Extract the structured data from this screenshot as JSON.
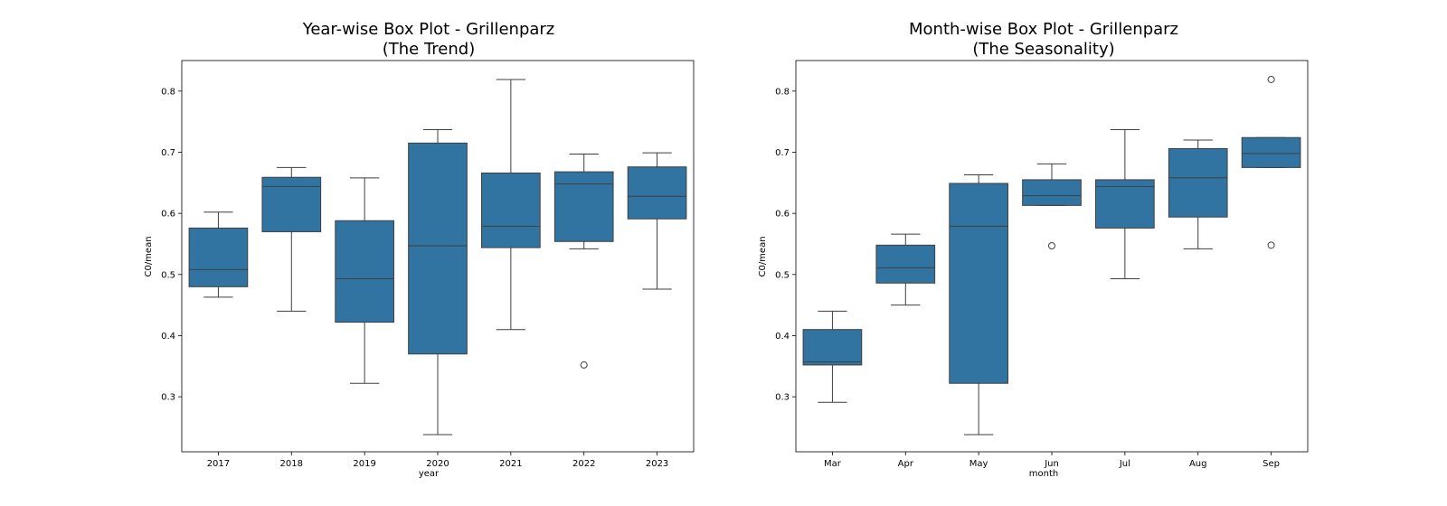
{
  "chart_data": [
    {
      "type": "box",
      "title": [
        "Year-wise Box Plot - Grillenparz",
        "(The Trend)"
      ],
      "xlabel": "year",
      "ylabel": "C0/mean",
      "ylim": [
        0.21,
        0.85
      ],
      "yticks": [
        "0.3",
        "0.4",
        "0.5",
        "0.6",
        "0.7",
        "0.8"
      ],
      "grid": false,
      "box_color": "#3274a1",
      "categories": [
        "2017",
        "2018",
        "2019",
        "2020",
        "2021",
        "2022",
        "2023"
      ],
      "boxes": [
        {
          "whisker_low": 0.463,
          "q1": 0.48,
          "median": 0.508,
          "q3": 0.576,
          "whisker_high": 0.602,
          "outliers": []
        },
        {
          "whisker_low": 0.44,
          "q1": 0.57,
          "median": 0.644,
          "q3": 0.659,
          "whisker_high": 0.675,
          "outliers": []
        },
        {
          "whisker_low": 0.322,
          "q1": 0.422,
          "median": 0.493,
          "q3": 0.588,
          "whisker_high": 0.658,
          "outliers": []
        },
        {
          "whisker_low": 0.238,
          "q1": 0.37,
          "median": 0.547,
          "q3": 0.715,
          "whisker_high": 0.737,
          "outliers": []
        },
        {
          "whisker_low": 0.41,
          "q1": 0.544,
          "median": 0.579,
          "q3": 0.666,
          "whisker_high": 0.819,
          "outliers": []
        },
        {
          "whisker_low": 0.542,
          "q1": 0.554,
          "median": 0.648,
          "q3": 0.668,
          "whisker_high": 0.697,
          "outliers": [
            0.352
          ]
        },
        {
          "whisker_low": 0.476,
          "q1": 0.591,
          "median": 0.628,
          "q3": 0.676,
          "whisker_high": 0.699,
          "outliers": []
        }
      ]
    },
    {
      "type": "box",
      "title": [
        "Month-wise Box Plot - Grillenparz",
        "(The Seasonality)"
      ],
      "xlabel": "month",
      "ylabel": "C0/mean",
      "ylim": [
        0.21,
        0.85
      ],
      "yticks": [
        "0.3",
        "0.4",
        "0.5",
        "0.6",
        "0.7",
        "0.8"
      ],
      "grid": false,
      "box_color": "#3274a1",
      "categories": [
        "Mar",
        "Apr",
        "May",
        "Jun",
        "Jul",
        "Aug",
        "Sep"
      ],
      "boxes": [
        {
          "whisker_low": 0.291,
          "q1": 0.352,
          "median": 0.357,
          "q3": 0.41,
          "whisker_high": 0.44,
          "outliers": []
        },
        {
          "whisker_low": 0.45,
          "q1": 0.486,
          "median": 0.511,
          "q3": 0.548,
          "whisker_high": 0.566,
          "outliers": []
        },
        {
          "whisker_low": 0.238,
          "q1": 0.322,
          "median": 0.579,
          "q3": 0.649,
          "whisker_high": 0.663,
          "outliers": []
        },
        {
          "whisker_low": 0.613,
          "q1": 0.613,
          "median": 0.629,
          "q3": 0.655,
          "whisker_high": 0.681,
          "outliers": [
            0.547
          ]
        },
        {
          "whisker_low": 0.493,
          "q1": 0.576,
          "median": 0.644,
          "q3": 0.655,
          "whisker_high": 0.737,
          "outliers": []
        },
        {
          "whisker_low": 0.542,
          "q1": 0.594,
          "median": 0.658,
          "q3": 0.706,
          "whisker_high": 0.72,
          "outliers": []
        },
        {
          "whisker_low": 0.675,
          "q1": 0.675,
          "median": 0.698,
          "q3": 0.724,
          "whisker_high": 0.724,
          "outliers": [
            0.548,
            0.819
          ]
        }
      ]
    }
  ]
}
